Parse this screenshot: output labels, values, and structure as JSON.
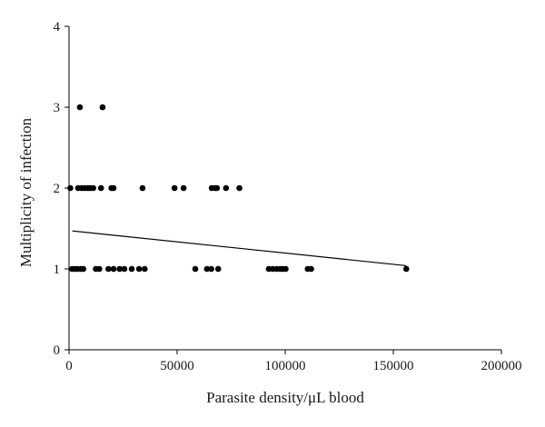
{
  "chart_data": {
    "type": "scatter",
    "title": "",
    "xlabel": "Parasite density/μL blood",
    "ylabel": "Multiplicity of infection",
    "xlim": [
      0,
      200000
    ],
    "ylim": [
      0,
      4
    ],
    "xticks": [
      0,
      50000,
      100000,
      150000,
      200000
    ],
    "xtick_labels": [
      "0",
      "50000",
      "100000",
      "150000",
      "200000"
    ],
    "yticks": [
      0,
      1,
      2,
      3,
      4
    ],
    "ytick_labels": [
      "0",
      "1",
      "2",
      "3",
      "4"
    ],
    "grid": false,
    "points": [
      {
        "x": 5000,
        "y": 3
      },
      {
        "x": 15500,
        "y": 3
      },
      {
        "x": 600,
        "y": 2
      },
      {
        "x": 4200,
        "y": 2
      },
      {
        "x": 5800,
        "y": 2
      },
      {
        "x": 7200,
        "y": 2
      },
      {
        "x": 8600,
        "y": 2
      },
      {
        "x": 9800,
        "y": 2
      },
      {
        "x": 11200,
        "y": 2
      },
      {
        "x": 14800,
        "y": 2
      },
      {
        "x": 19600,
        "y": 2
      },
      {
        "x": 20600,
        "y": 2
      },
      {
        "x": 34000,
        "y": 2
      },
      {
        "x": 48800,
        "y": 2
      },
      {
        "x": 53000,
        "y": 2
      },
      {
        "x": 66000,
        "y": 2
      },
      {
        "x": 67600,
        "y": 2
      },
      {
        "x": 68400,
        "y": 2
      },
      {
        "x": 72600,
        "y": 2
      },
      {
        "x": 78800,
        "y": 2
      },
      {
        "x": 1400,
        "y": 1
      },
      {
        "x": 2800,
        "y": 1
      },
      {
        "x": 3800,
        "y": 1
      },
      {
        "x": 5400,
        "y": 1
      },
      {
        "x": 6600,
        "y": 1
      },
      {
        "x": 12400,
        "y": 1
      },
      {
        "x": 14000,
        "y": 1
      },
      {
        "x": 18200,
        "y": 1
      },
      {
        "x": 20600,
        "y": 1
      },
      {
        "x": 23400,
        "y": 1
      },
      {
        "x": 25600,
        "y": 1
      },
      {
        "x": 29000,
        "y": 1
      },
      {
        "x": 32400,
        "y": 1
      },
      {
        "x": 35000,
        "y": 1
      },
      {
        "x": 58400,
        "y": 1
      },
      {
        "x": 63800,
        "y": 1
      },
      {
        "x": 65800,
        "y": 1
      },
      {
        "x": 69000,
        "y": 1
      },
      {
        "x": 92400,
        "y": 1
      },
      {
        "x": 94200,
        "y": 1
      },
      {
        "x": 96000,
        "y": 1
      },
      {
        "x": 97600,
        "y": 1
      },
      {
        "x": 98800,
        "y": 1
      },
      {
        "x": 100200,
        "y": 1
      },
      {
        "x": 110400,
        "y": 1
      },
      {
        "x": 112000,
        "y": 1
      },
      {
        "x": 156000,
        "y": 1
      }
    ],
    "trendline": [
      {
        "x": 1500,
        "y": 1.47
      },
      {
        "x": 156000,
        "y": 1.04
      }
    ]
  }
}
